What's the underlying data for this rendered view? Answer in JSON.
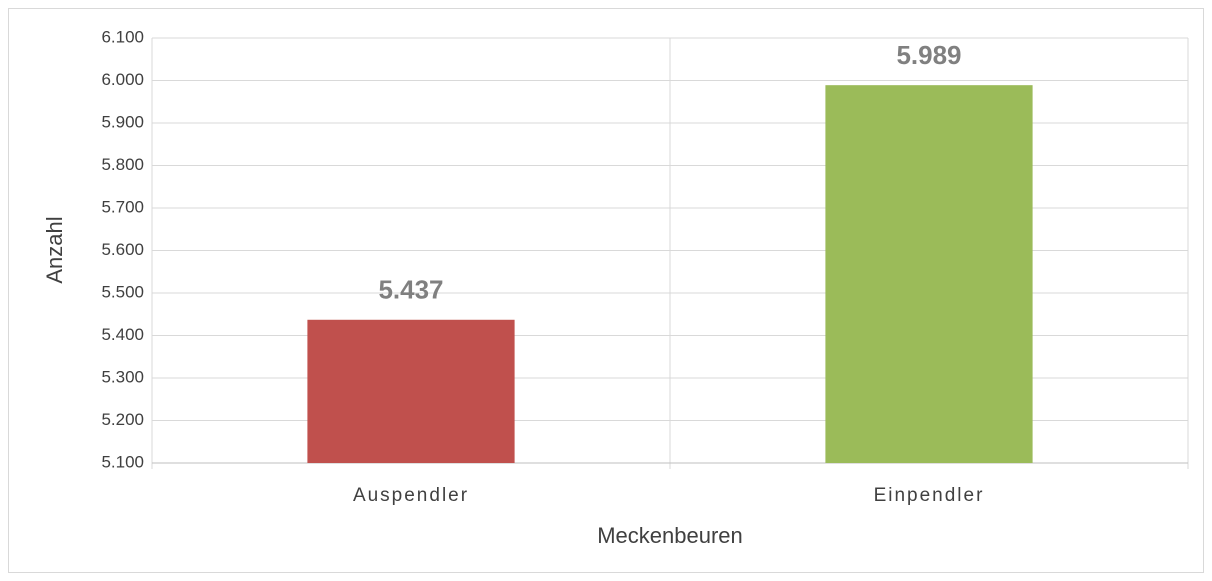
{
  "chart_data": {
    "type": "bar",
    "x_label": "Meckenbeuren",
    "y_label": "Anzahl",
    "categories": [
      "Auspendler",
      "Einpendler"
    ],
    "values": [
      5437,
      5989
    ],
    "value_labels": [
      "5.437",
      "5.989"
    ],
    "colors": [
      "#c0504d",
      "#9bbb59"
    ],
    "ylim": [
      5100,
      6100
    ],
    "yticks": [
      {
        "value": 5100,
        "label": "5.100"
      },
      {
        "value": 5200,
        "label": "5.200"
      },
      {
        "value": 5300,
        "label": "5.300"
      },
      {
        "value": 5400,
        "label": "5.400"
      },
      {
        "value": 5500,
        "label": "5.500"
      },
      {
        "value": 5600,
        "label": "5.600"
      },
      {
        "value": 5700,
        "label": "5.700"
      },
      {
        "value": 5800,
        "label": "5.800"
      },
      {
        "value": 5900,
        "label": "5.900"
      },
      {
        "value": 6000,
        "label": "6.000"
      },
      {
        "value": 6100,
        "label": "6.100"
      }
    ],
    "grid": true
  }
}
